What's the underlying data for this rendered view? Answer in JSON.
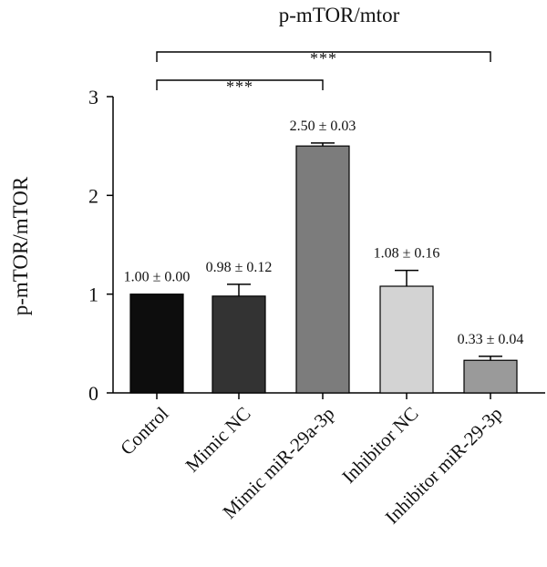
{
  "chart_data": {
    "type": "bar",
    "title": "p-mTOR/mtor",
    "ylabel": "p-mTOR/mTOR",
    "xlabel": "",
    "ylim": [
      0,
      3
    ],
    "yticks": [
      0,
      1,
      2,
      3
    ],
    "grid": false,
    "categories": [
      "Control",
      "Mimic NC",
      "Mimic miR-29a-3p",
      "Inhibitor NC",
      "Inhibitor miR-29-3p"
    ],
    "values": [
      1.0,
      0.98,
      2.5,
      1.08,
      0.33
    ],
    "errors": [
      0.0,
      0.12,
      0.03,
      0.16,
      0.04
    ],
    "data_labels": [
      "1.00 ± 0.00",
      "0.98 ± 0.12",
      "2.50 ± 0.03",
      "1.08 ± 0.16",
      "0.33 ± 0.04"
    ],
    "bar_colors": [
      "#0d0d0d",
      "#333333",
      "#7c7c7c",
      "#d3d3d3",
      "#9a9a9a"
    ],
    "significance": [
      {
        "from": "Control",
        "to": "Mimic miR-29a-3p",
        "label": "***"
      },
      {
        "from": "Control",
        "to": "Inhibitor miR-29-3p",
        "label": "***"
      }
    ]
  }
}
